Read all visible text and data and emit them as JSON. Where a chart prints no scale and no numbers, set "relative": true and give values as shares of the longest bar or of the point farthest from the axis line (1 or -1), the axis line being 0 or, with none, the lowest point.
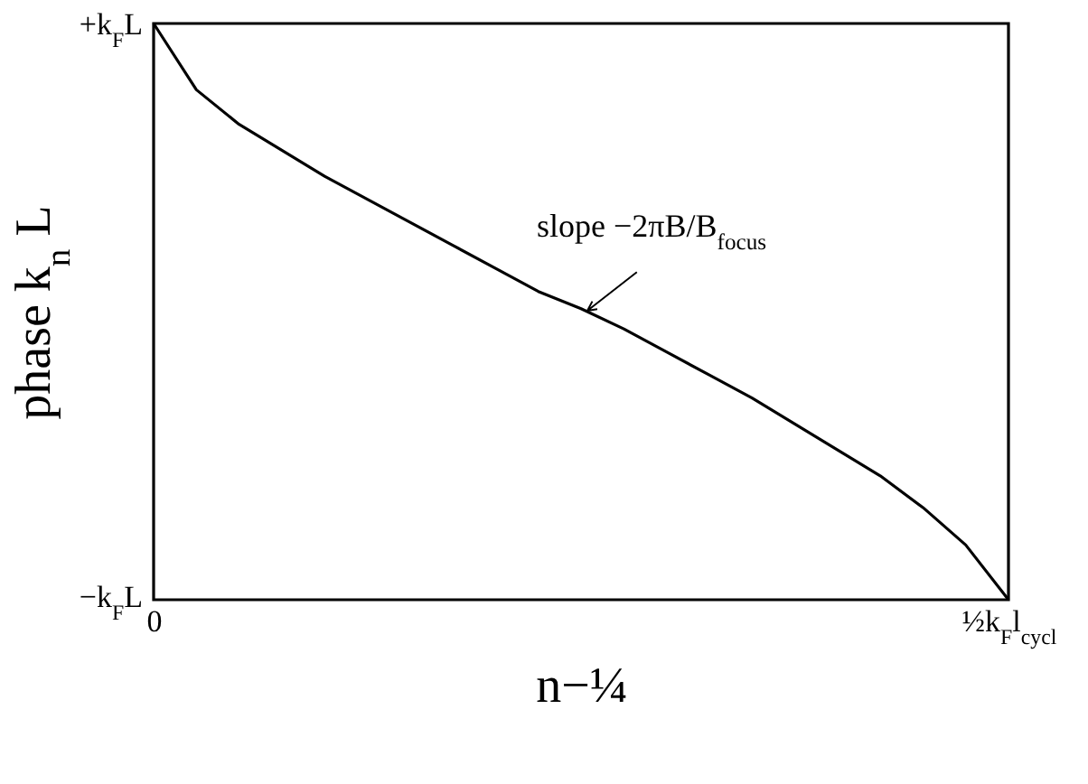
{
  "chart_data": {
    "type": "line",
    "xlabel": "n−¼",
    "ylabel": "phase k$_{n}$ L",
    "relative": true,
    "categories": [
      "0",
      null,
      null,
      null,
      null,
      null,
      null,
      null,
      null,
      null,
      null,
      null,
      null,
      null,
      null,
      null,
      null,
      null,
      null,
      null,
      "½k$_{F}$l$_{cycl}$"
    ],
    "series": [
      {
        "color": "#000000",
        "values": [
          1,
          0.885,
          0.825,
          0.78,
          0.735,
          0.695,
          0.655,
          0.615,
          0.575,
          0.535,
          0.505,
          0.47,
          0.43,
          0.39,
          0.35,
          0.305,
          0.26,
          0.215,
          0.16,
          0.095,
          0
        ]
      }
    ],
    "annotations": [
      "+k$_{F}$L",
      "−k$_{F}$L",
      "slope −2πB/B$_{focus}$"
    ],
    "marker": "none",
    "line_style": "solid"
  }
}
